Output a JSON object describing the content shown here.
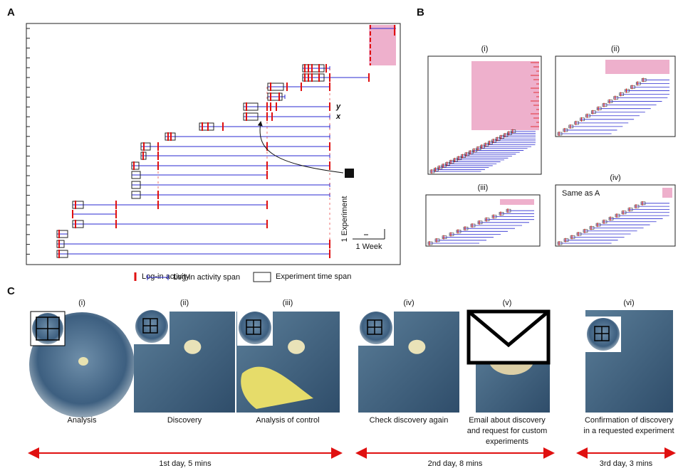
{
  "panel_a": {
    "label": "A",
    "annotations": [
      "y",
      "x"
    ],
    "scale_y": "1 Experiment",
    "scale_x": "1 Week"
  },
  "legend": [
    "Log-in activity",
    "Log-in activity span",
    "Experiment time span"
  ],
  "panel_b": {
    "label": "B",
    "subpanels": [
      "(i)",
      "(ii)",
      "(iii)",
      "(iv)"
    ],
    "note": "Same as A"
  },
  "panel_c": {
    "label": "C",
    "steps": [
      {
        "numeral": "(i)",
        "caption": [
          "Analysis"
        ]
      },
      {
        "numeral": "(ii)",
        "caption": [
          "Discovery"
        ]
      },
      {
        "numeral": "(iii)",
        "caption": [
          "Analysis of control"
        ]
      },
      {
        "numeral": "(iv)",
        "caption": [
          "Check discovery again"
        ]
      },
      {
        "numeral": "(v)",
        "caption": [
          "Email about discovery",
          "and request for custom",
          "experiments"
        ]
      },
      {
        "numeral": "(vi)",
        "caption": [
          "Confirmation of discovery",
          "in a requested experiment"
        ]
      }
    ],
    "periods": [
      "1st day, 5 mins",
      "2nd day, 8 mins",
      "3rd day, 3 mins"
    ]
  }
}
